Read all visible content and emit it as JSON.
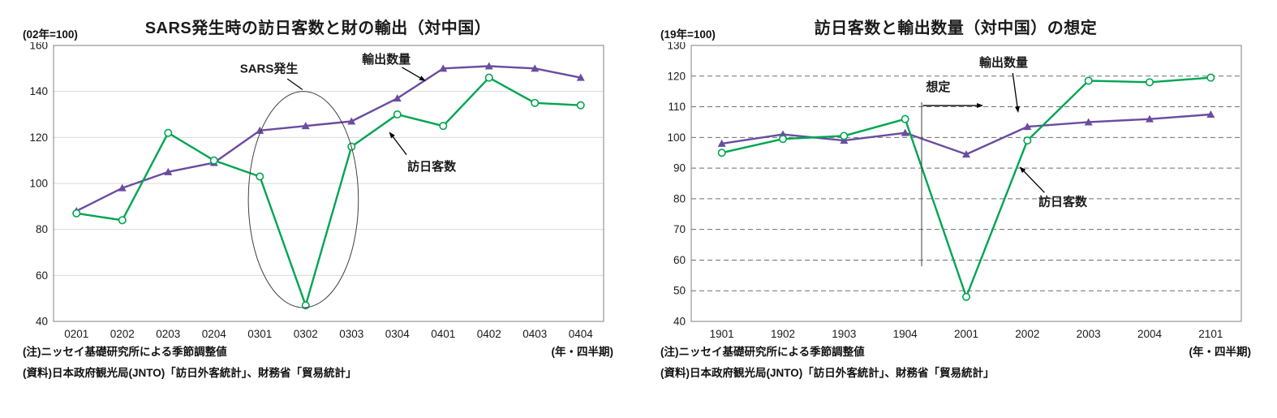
{
  "chart_data": [
    {
      "type": "line",
      "title": "SARS発生時の訪日客数と財の輸出（対中国）",
      "unit_label": "(02年=100)",
      "x_axis_note": "(年・四半期)",
      "notes": [
        "(注)ニッセイ基礎研究所による季節調整値",
        "(資料)日本政府観光局(JNTO)「訪日外客統計」、財務省「貿易統計」"
      ],
      "categories": [
        "0201",
        "0202",
        "0203",
        "0204",
        "0301",
        "0302",
        "0303",
        "0304",
        "0401",
        "0402",
        "0403",
        "0404"
      ],
      "series": [
        {
          "key": "exports",
          "name": "輸出数量",
          "color": "#6B4CA0",
          "marker": "triangle",
          "values": [
            88,
            98,
            105,
            109,
            123,
            125,
            127,
            137,
            150,
            151,
            150,
            146
          ]
        },
        {
          "key": "visitors",
          "name": "訪日客数",
          "color": "#00A551",
          "marker": "circle-open",
          "values": [
            87,
            84,
            122,
            110,
            103,
            47,
            116,
            130,
            125,
            146,
            135,
            134
          ]
        }
      ],
      "ylim": [
        40,
        160
      ],
      "ytick": 20,
      "grid": "solid",
      "grid_color": "#d9d9d9",
      "annotations": [
        {
          "type": "text",
          "name": "sars-label",
          "text": "SARS発生",
          "x": 4.2,
          "y": 150
        },
        {
          "type": "line",
          "name": "sars-leader-line",
          "x1": 4.6,
          "y1": 145.5,
          "x2": 4.93,
          "y2": 140.8
        },
        {
          "type": "ellipse",
          "name": "sars-ellipse",
          "cx": 4.95,
          "cy": 93,
          "rx": 1.2,
          "ry": 47
        },
        {
          "type": "text",
          "name": "exports-label",
          "text": "輸出数量",
          "x": 6.76,
          "y": 154
        },
        {
          "type": "arrow",
          "name": "exports-arrow",
          "x1": 7.1,
          "y1": 150.5,
          "x2": 7.62,
          "y2": 144.5
        },
        {
          "type": "text",
          "name": "visitors-label",
          "text": "訪日客数",
          "x": 7.75,
          "y": 107.5
        },
        {
          "type": "arrow",
          "name": "visitors-arrow",
          "x1": 7.2,
          "y1": 112.5,
          "x2": 6.82,
          "y2": 122.5
        }
      ]
    },
    {
      "type": "line",
      "title": "訪日客数と輸出数量（対中国）の想定",
      "unit_label": "(19年=100)",
      "x_axis_note": "(年・四半期)",
      "notes": [
        "(注)ニッセイ基礎研究所による季節調整値",
        "(資料)日本政府観光局(JNTO)「訪日外客統計」、財務省「貿易統計」"
      ],
      "categories": [
        "1901",
        "1902",
        "1903",
        "1904",
        "2001",
        "2002",
        "2003",
        "2004",
        "2101"
      ],
      "series": [
        {
          "key": "exports",
          "name": "輸出数量",
          "color": "#6B4CA0",
          "marker": "triangle",
          "values": [
            98,
            101,
            99,
            101.5,
            94.5,
            103.5,
            105,
            106,
            107.5
          ]
        },
        {
          "key": "visitors",
          "name": "訪日客数",
          "color": "#00A551",
          "marker": "circle-open",
          "values": [
            95,
            99.5,
            100.5,
            106,
            48,
            99,
            118.5,
            118,
            119.5
          ]
        }
      ],
      "ylim": [
        40,
        130
      ],
      "ytick": 10,
      "grid": "dashed",
      "grid_color": "#6e6e6e",
      "annotations": [
        {
          "type": "text",
          "name": "exports-label",
          "text": "輸出数量",
          "x": 4.61,
          "y": 124.5
        },
        {
          "type": "arrow",
          "name": "exports-arrow",
          "x1": 4.76,
          "y1": 121,
          "x2": 4.85,
          "y2": 108
        },
        {
          "type": "text",
          "name": "assumption-label",
          "text": "想定",
          "x": 3.54,
          "y": 116.5
        },
        {
          "type": "vline",
          "name": "assumption-vline",
          "x": 3.27,
          "y1": 58,
          "y2": 111.5
        },
        {
          "type": "arrow",
          "name": "assumption-arrow",
          "x1": 3.29,
          "y1": 110.4,
          "x2": 4.28,
          "y2": 110.4
        },
        {
          "type": "text",
          "name": "visitors-label",
          "text": "訪日客数",
          "x": 5.58,
          "y": 79
        },
        {
          "type": "arrow",
          "name": "visitors-arrow",
          "x1": 5.28,
          "y1": 82,
          "x2": 4.87,
          "y2": 90.5
        }
      ]
    }
  ]
}
